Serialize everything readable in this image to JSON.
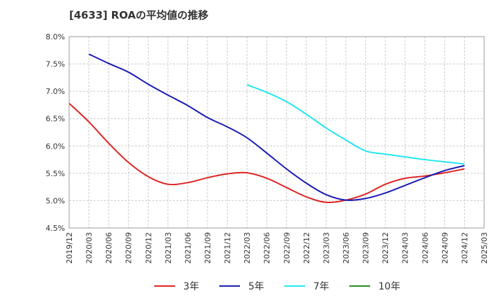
{
  "chart_data": {
    "type": "line",
    "title": "[4633]  ROAの平均値の推移",
    "xlabel": "",
    "ylabel": "",
    "x_labels": [
      "2019/12",
      "2020/03",
      "2020/06",
      "2020/09",
      "2020/12",
      "2021/03",
      "2021/06",
      "2021/09",
      "2021/12",
      "2022/03",
      "2022/06",
      "2022/09",
      "2022/12",
      "2023/03",
      "2023/06",
      "2023/09",
      "2023/12",
      "2024/03",
      "2024/06",
      "2024/09",
      "2024/12",
      "2025/03"
    ],
    "y_ticks": [
      "8.0%",
      "7.5%",
      "7.0%",
      "6.5%",
      "6.0%",
      "5.5%",
      "5.0%",
      "4.5%"
    ],
    "ylim": [
      4.5,
      8.0
    ],
    "grid": true,
    "legend_position": "bottom",
    "series": [
      {
        "name": "3年",
        "color": "#dd2222",
        "values": [
          6.78,
          6.44,
          6.05,
          5.7,
          5.44,
          5.3,
          5.33,
          5.42,
          5.49,
          5.51,
          5.41,
          5.24,
          5.07,
          4.97,
          5.01,
          5.12,
          5.3,
          5.41,
          5.45,
          5.51,
          5.58,
          null
        ]
      },
      {
        "name": "5年",
        "color": "#1a1ab4",
        "values": [
          null,
          7.68,
          7.51,
          7.35,
          7.13,
          6.93,
          6.74,
          6.52,
          6.35,
          6.15,
          5.87,
          5.58,
          5.32,
          5.11,
          5.01,
          5.04,
          5.14,
          5.28,
          5.42,
          5.55,
          5.64,
          null
        ]
      },
      {
        "name": "7年",
        "color": "#22e6ef",
        "values": [
          null,
          null,
          null,
          null,
          null,
          null,
          null,
          null,
          null,
          7.12,
          6.98,
          6.81,
          6.58,
          6.33,
          6.11,
          5.91,
          5.85,
          5.8,
          5.75,
          5.71,
          5.67,
          null
        ]
      },
      {
        "name": "10年",
        "color": "#228b22",
        "values": [
          null,
          null,
          null,
          null,
          null,
          null,
          null,
          null,
          null,
          null,
          null,
          null,
          null,
          null,
          null,
          null,
          null,
          null,
          null,
          null,
          null,
          null
        ]
      }
    ]
  }
}
